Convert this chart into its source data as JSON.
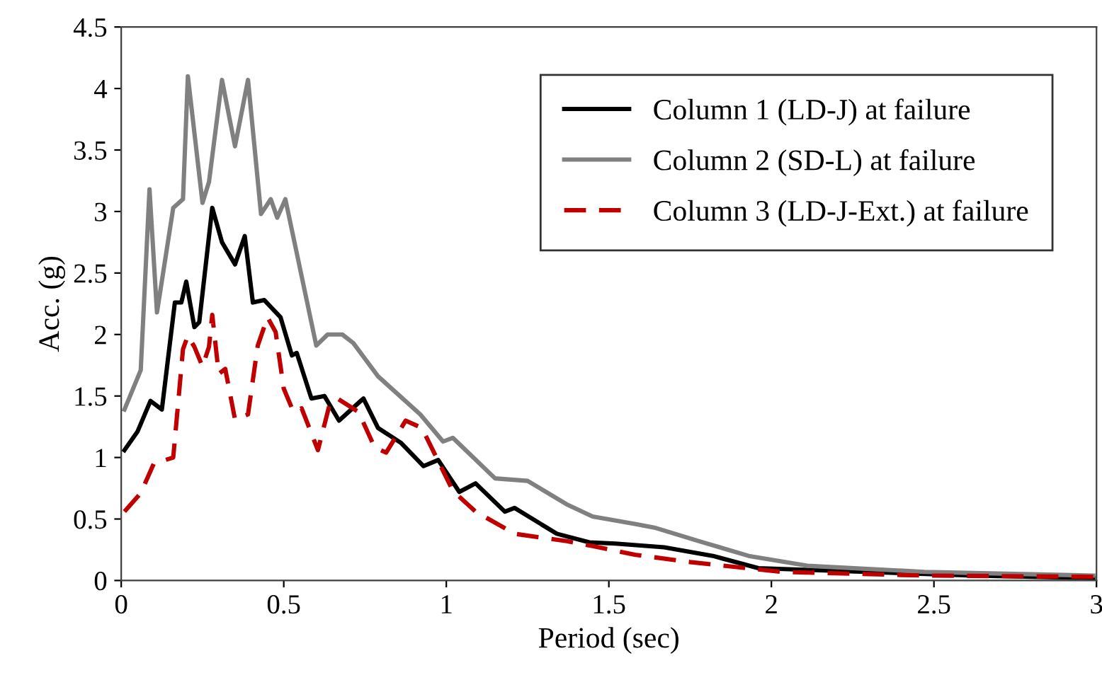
{
  "chart_data": {
    "type": "line",
    "xlabel": "Period (sec)",
    "ylabel": "Acc. (g)",
    "xlim": [
      0,
      3
    ],
    "ylim": [
      0,
      4.5
    ],
    "xticks": [
      0,
      0.5,
      1,
      1.5,
      2,
      2.5,
      3
    ],
    "yticks": [
      0,
      0.5,
      1,
      1.5,
      2,
      2.5,
      3,
      3.5,
      4,
      4.5
    ],
    "grid": false,
    "legend": "top right",
    "marker": "none",
    "series": [
      {
        "name": "Column 1 (LD-J) at failure",
        "color": "#000000",
        "line_style": "solid",
        "x": [
          0.01,
          0.05,
          0.09,
          0.125,
          0.165,
          0.185,
          0.2,
          0.225,
          0.24,
          0.28,
          0.31,
          0.35,
          0.38,
          0.405,
          0.44,
          0.49,
          0.525,
          0.54,
          0.585,
          0.625,
          0.67,
          0.745,
          0.79,
          0.86,
          0.93,
          0.975,
          1.04,
          1.09,
          1.18,
          1.21,
          1.34,
          1.44,
          1.52,
          1.67,
          1.82,
          1.96,
          2.18,
          2.62,
          2.99
        ],
        "values": [
          1.06,
          1.21,
          1.46,
          1.39,
          2.26,
          2.26,
          2.43,
          2.06,
          2.1,
          3.03,
          2.75,
          2.57,
          2.8,
          2.26,
          2.28,
          2.14,
          1.83,
          1.85,
          1.48,
          1.5,
          1.3,
          1.48,
          1.24,
          1.12,
          0.93,
          0.98,
          0.72,
          0.79,
          0.56,
          0.59,
          0.38,
          0.31,
          0.3,
          0.27,
          0.2,
          0.1,
          0.08,
          0.04,
          0.02
        ]
      },
      {
        "name": "Column 2 (SD-L) at failure",
        "color": "#808080",
        "line_style": "solid",
        "x": [
          0.01,
          0.06,
          0.087,
          0.11,
          0.16,
          0.19,
          0.205,
          0.25,
          0.27,
          0.31,
          0.35,
          0.39,
          0.43,
          0.46,
          0.48,
          0.505,
          0.6,
          0.635,
          0.68,
          0.714,
          0.79,
          0.92,
          0.99,
          1.02,
          1.15,
          1.25,
          1.37,
          1.45,
          1.58,
          1.64,
          1.79,
          1.93,
          2.11,
          2.47,
          2.99
        ],
        "values": [
          1.39,
          1.71,
          3.18,
          2.18,
          3.03,
          3.1,
          4.1,
          3.07,
          3.24,
          4.07,
          3.53,
          4.07,
          2.98,
          3.1,
          2.95,
          3.1,
          1.91,
          2.0,
          2.0,
          1.93,
          1.66,
          1.35,
          1.13,
          1.16,
          0.83,
          0.81,
          0.62,
          0.52,
          0.46,
          0.43,
          0.31,
          0.2,
          0.12,
          0.07,
          0.04
        ]
      },
      {
        "name": "Column 3 (LD-J-Ext.) at failure",
        "color": "#c00000",
        "line_style": "dashed",
        "x": [
          0.01,
          0.06,
          0.1,
          0.16,
          0.19,
          0.205,
          0.225,
          0.25,
          0.27,
          0.28,
          0.3,
          0.32,
          0.35,
          0.39,
          0.42,
          0.45,
          0.475,
          0.5,
          0.53,
          0.555,
          0.605,
          0.64,
          0.665,
          0.73,
          0.78,
          0.815,
          0.875,
          0.925,
          1.02,
          1.09,
          1.21,
          1.37,
          1.45,
          1.58,
          1.75,
          2.03,
          2.47,
          2.99
        ],
        "values": [
          0.56,
          0.71,
          0.95,
          1.0,
          1.88,
          1.99,
          1.9,
          1.74,
          1.9,
          2.16,
          1.68,
          1.72,
          1.31,
          1.35,
          1.91,
          2.14,
          2.02,
          1.56,
          1.37,
          1.4,
          1.06,
          1.42,
          1.48,
          1.37,
          1.08,
          1.04,
          1.3,
          1.24,
          0.73,
          0.56,
          0.38,
          0.32,
          0.28,
          0.21,
          0.15,
          0.07,
          0.04,
          0.03
        ]
      }
    ]
  }
}
